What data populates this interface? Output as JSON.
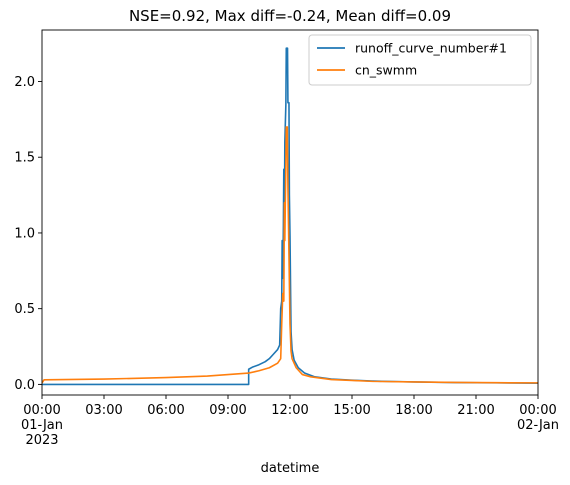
{
  "chart_data": {
    "type": "line",
    "title": "NSE=0.92, Max diff=-0.24, Mean diff=0.09",
    "xlabel": "datetime",
    "ylabel": "",
    "xlim": [
      0,
      24
    ],
    "ylim": [
      -0.07,
      2.34
    ],
    "grid": false,
    "legend_position": "top-right",
    "x_ticks": [
      {
        "value": 0,
        "lines": [
          "00:00",
          "01-Jan",
          "2023"
        ]
      },
      {
        "value": 3,
        "lines": [
          "03:00"
        ]
      },
      {
        "value": 6,
        "lines": [
          "06:00"
        ]
      },
      {
        "value": 9,
        "lines": [
          "09:00"
        ]
      },
      {
        "value": 12,
        "lines": [
          "12:00"
        ]
      },
      {
        "value": 15,
        "lines": [
          "15:00"
        ]
      },
      {
        "value": 18,
        "lines": [
          "18:00"
        ]
      },
      {
        "value": 21,
        "lines": [
          "21:00"
        ]
      },
      {
        "value": 24,
        "lines": [
          "00:00",
          "02-Jan"
        ]
      }
    ],
    "y_ticks": [
      {
        "value": 0.0,
        "label": "0.0"
      },
      {
        "value": 0.5,
        "label": "0.5"
      },
      {
        "value": 1.0,
        "label": "1.0"
      },
      {
        "value": 1.5,
        "label": "1.5"
      },
      {
        "value": 2.0,
        "label": "2.0"
      }
    ],
    "series": [
      {
        "name": "runoff_curve_number#1",
        "color": "#1f77b4",
        "points": [
          [
            0.0,
            0.0
          ],
          [
            10.0,
            0.0
          ],
          [
            10.0,
            0.1
          ],
          [
            10.2,
            0.115
          ],
          [
            10.5,
            0.13
          ],
          [
            10.8,
            0.15
          ],
          [
            11.0,
            0.17
          ],
          [
            11.2,
            0.2
          ],
          [
            11.4,
            0.23
          ],
          [
            11.5,
            0.26
          ],
          [
            11.55,
            0.5
          ],
          [
            11.6,
            0.55
          ],
          [
            11.62,
            0.95
          ],
          [
            11.65,
            0.7
          ],
          [
            11.68,
            1.05
          ],
          [
            11.7,
            1.42
          ],
          [
            11.73,
            1.1
          ],
          [
            11.75,
            1.6
          ],
          [
            11.8,
            1.85
          ],
          [
            11.82,
            2.22
          ],
          [
            11.88,
            2.22
          ],
          [
            11.9,
            1.86
          ],
          [
            11.95,
            1.86
          ],
          [
            11.97,
            1.25
          ],
          [
            12.0,
            0.98
          ],
          [
            12.05,
            0.35
          ],
          [
            12.1,
            0.23
          ],
          [
            12.2,
            0.16
          ],
          [
            12.4,
            0.11
          ],
          [
            12.7,
            0.075
          ],
          [
            13.2,
            0.05
          ],
          [
            14.0,
            0.035
          ],
          [
            15.0,
            0.028
          ],
          [
            16.0,
            0.022
          ],
          [
            18.0,
            0.016
          ],
          [
            20.0,
            0.012
          ],
          [
            22.0,
            0.01
          ],
          [
            24.0,
            0.008
          ]
        ]
      },
      {
        "name": "cn_swmm",
        "color": "#ff7f0e",
        "points": [
          [
            0.0,
            0.01
          ],
          [
            0.1,
            0.03
          ],
          [
            3.0,
            0.035
          ],
          [
            6.0,
            0.045
          ],
          [
            8.0,
            0.055
          ],
          [
            9.0,
            0.065
          ],
          [
            10.0,
            0.075
          ],
          [
            10.5,
            0.09
          ],
          [
            11.0,
            0.11
          ],
          [
            11.4,
            0.14
          ],
          [
            11.55,
            0.17
          ],
          [
            11.6,
            0.4
          ],
          [
            11.65,
            0.6
          ],
          [
            11.7,
            0.55
          ],
          [
            11.73,
            1.2
          ],
          [
            11.75,
            0.95
          ],
          [
            11.8,
            1.45
          ],
          [
            11.82,
            1.7
          ],
          [
            11.85,
            1.55
          ],
          [
            11.87,
            1.7
          ],
          [
            11.9,
            1.3
          ],
          [
            11.95,
            0.85
          ],
          [
            12.0,
            0.4
          ],
          [
            12.05,
            0.22
          ],
          [
            12.1,
            0.17
          ],
          [
            12.3,
            0.11
          ],
          [
            12.6,
            0.065
          ],
          [
            13.0,
            0.05
          ],
          [
            14.0,
            0.032
          ],
          [
            15.0,
            0.026
          ],
          [
            16.0,
            0.02
          ],
          [
            18.0,
            0.016
          ],
          [
            20.0,
            0.013
          ],
          [
            22.0,
            0.011
          ],
          [
            24.0,
            0.01
          ]
        ]
      }
    ]
  }
}
